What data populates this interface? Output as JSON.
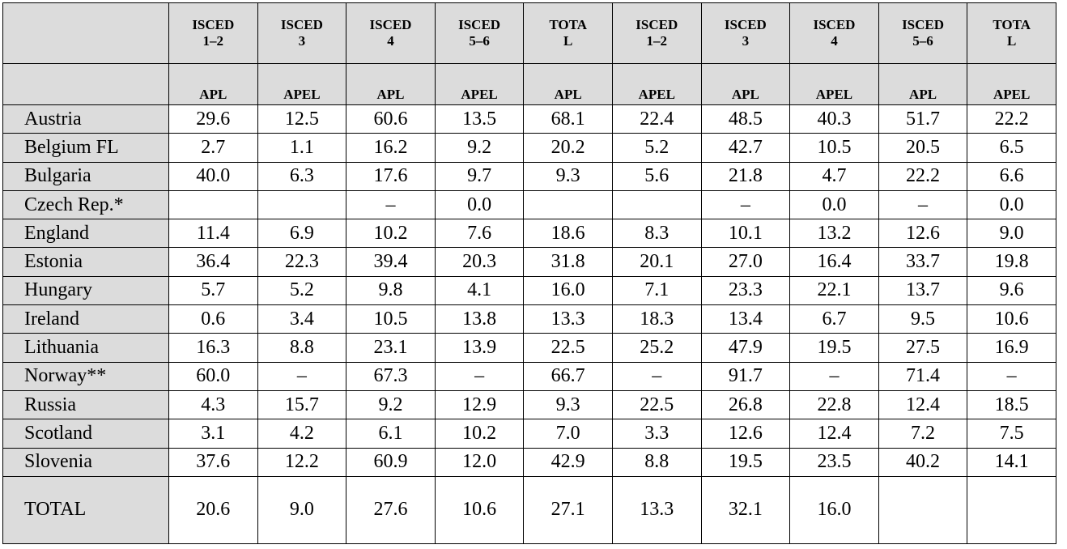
{
  "table": {
    "header": {
      "groups": [
        [
          "ISCED",
          "1–2"
        ],
        [
          "ISCED",
          "3"
        ],
        [
          "ISCED",
          "4"
        ],
        [
          "ISCED",
          "5–6"
        ],
        [
          "TOTA",
          "L"
        ],
        [
          "ISCED",
          "1–2"
        ],
        [
          "ISCED",
          "3"
        ],
        [
          "ISCED",
          "4"
        ],
        [
          "ISCED",
          "5–6"
        ],
        [
          "TOTA",
          "L"
        ]
      ],
      "subheaders": [
        "APL",
        "APEL",
        "APL",
        "APEL",
        "APL",
        "APEL",
        "APL",
        "APEL",
        "APL",
        "APEL"
      ]
    },
    "rows": [
      {
        "label": "Austria",
        "cells": [
          "29.6",
          "12.5",
          "60.6",
          "13.5",
          "68.1",
          "22.4",
          "48.5",
          "40.3",
          "51.7",
          "22.2"
        ]
      },
      {
        "label": "Belgium FL",
        "cells": [
          "2.7",
          "1.1",
          "16.2",
          "9.2",
          "20.2",
          "5.2",
          "42.7",
          "10.5",
          "20.5",
          "6.5"
        ]
      },
      {
        "label": "Bulgaria",
        "cells": [
          "40.0",
          "6.3",
          "17.6",
          "9.7",
          "9.3",
          "5.6",
          "21.8",
          "4.7",
          "22.2",
          "6.6"
        ]
      },
      {
        "label": "Czech Rep.*",
        "cells": [
          null,
          null,
          "–",
          "0.0",
          null,
          null,
          "–",
          "0.0",
          "–",
          "0.0"
        ]
      },
      {
        "label": "England",
        "cells": [
          "11.4",
          "6.9",
          "10.2",
          "7.6",
          "18.6",
          "8.3",
          "10.1",
          "13.2",
          "12.6",
          "9.0"
        ]
      },
      {
        "label": "Estonia",
        "cells": [
          "36.4",
          "22.3",
          "39.4",
          "20.3",
          "31.8",
          "20.1",
          "27.0",
          "16.4",
          "33.7",
          "19.8"
        ]
      },
      {
        "label": "Hungary",
        "cells": [
          "5.7",
          "5.2",
          "9.8",
          "4.1",
          "16.0",
          "7.1",
          "23.3",
          "22.1",
          "13.7",
          "9.6"
        ]
      },
      {
        "label": "Ireland",
        "cells": [
          "0.6",
          "3.4",
          "10.5",
          "13.8",
          "13.3",
          "18.3",
          "13.4",
          "6.7",
          "9.5",
          "10.6"
        ]
      },
      {
        "label": "Lithuania",
        "cells": [
          "16.3",
          "8.8",
          "23.1",
          "13.9",
          "22.5",
          "25.2",
          "47.9",
          "19.5",
          "27.5",
          "16.9"
        ]
      },
      {
        "label": "Norway**",
        "cells": [
          "60.0",
          "–",
          "67.3",
          "–",
          "66.7",
          "–",
          "91.7",
          "–",
          "71.4",
          "–"
        ]
      },
      {
        "label": "Russia",
        "cells": [
          "4.3",
          "15.7",
          "9.2",
          "12.9",
          "9.3",
          "22.5",
          "26.8",
          "22.8",
          "12.4",
          "18.5"
        ]
      },
      {
        "label": "Scotland",
        "cells": [
          "3.1",
          "4.2",
          "6.1",
          "10.2",
          "7.0",
          "3.3",
          "12.6",
          "12.4",
          "7.2",
          "7.5"
        ]
      },
      {
        "label": "Slovenia",
        "cells": [
          "37.6",
          "12.2",
          "60.9",
          "12.0",
          "42.9",
          "8.8",
          "19.5",
          "23.5",
          "40.2",
          "14.1"
        ]
      },
      {
        "label": "TOTAL",
        "cells": [
          "20.6",
          "9.0",
          "27.6",
          "10.6",
          "27.1",
          "13.3",
          "32.1",
          "16.0",
          null,
          null
        ]
      }
    ]
  }
}
